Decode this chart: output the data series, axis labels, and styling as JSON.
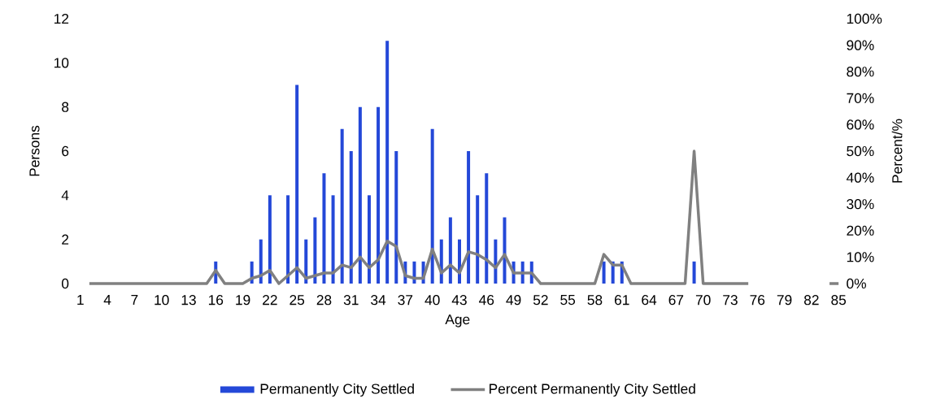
{
  "chart_data": {
    "type": "bar",
    "xlabel": "Age",
    "ylabel": "Persons",
    "y2label": "Percent/%",
    "categories": [
      "1",
      null,
      null,
      "4",
      null,
      null,
      "7",
      null,
      null,
      "10",
      null,
      null,
      "13",
      null,
      null,
      "16",
      null,
      null,
      "19",
      null,
      null,
      "22",
      null,
      null,
      "25",
      null,
      null,
      "28",
      null,
      null,
      "31",
      null,
      null,
      "34",
      null,
      null,
      "37",
      null,
      null,
      "40",
      null,
      null,
      "43",
      null,
      null,
      "46",
      null,
      null,
      "49",
      null,
      null,
      "52",
      null,
      null,
      "55",
      null,
      null,
      "58",
      null,
      null,
      "61",
      null,
      null,
      "64",
      null,
      null,
      "67",
      null,
      null,
      "70",
      null,
      null,
      "73",
      null,
      null,
      "76",
      null,
      null,
      "79",
      null,
      null,
      "82",
      null,
      null,
      "85"
    ],
    "series": [
      {
        "name": "Permanently City Settled",
        "color": "#2448d8",
        "values": [
          null,
          null,
          null,
          null,
          null,
          null,
          null,
          null,
          null,
          null,
          null,
          null,
          null,
          null,
          null,
          1,
          null,
          null,
          null,
          1,
          2,
          4,
          null,
          4,
          9,
          2,
          3,
          5,
          4,
          7,
          6,
          8,
          4,
          8,
          11,
          6,
          1,
          1,
          1,
          7,
          2,
          3,
          2,
          6,
          4,
          5,
          2,
          3,
          1,
          1,
          1,
          null,
          null,
          null,
          null,
          null,
          null,
          null,
          1,
          1,
          1,
          null,
          null,
          null,
          null,
          null,
          null,
          null,
          1,
          null,
          null,
          null,
          null,
          null,
          null,
          null,
          null,
          null,
          null,
          null,
          null,
          null,
          null,
          null,
          null
        ]
      },
      {
        "name": "Percent Permanently City Settled",
        "type": "line",
        "axis": "y2",
        "color": "#808080",
        "values": [
          null,
          0,
          0,
          0,
          0,
          0,
          0,
          0,
          0,
          0,
          0,
          0,
          0,
          0,
          0,
          5,
          0,
          0,
          0,
          2,
          3,
          5,
          0,
          3,
          6,
          2,
          3,
          4,
          4,
          7,
          6,
          10,
          6,
          9,
          16,
          14,
          3,
          2,
          2,
          13,
          4,
          7,
          4,
          12,
          11,
          9,
          6,
          11,
          4,
          4,
          4,
          0,
          0,
          0,
          0,
          0,
          0,
          0,
          11,
          7,
          7,
          0,
          0,
          0,
          0,
          0,
          0,
          0,
          50,
          0,
          0,
          0,
          0,
          0,
          0,
          null,
          null,
          null,
          null,
          null,
          null,
          null,
          null,
          0,
          0
        ]
      }
    ],
    "ylim": [
      0,
      12
    ],
    "yticks": [
      0,
      2,
      4,
      6,
      8,
      10,
      12
    ],
    "y2lim": [
      0,
      100
    ],
    "y2ticks": [
      {
        "value": 0,
        "label": "0%"
      },
      {
        "value": 10,
        "label": "10%"
      },
      {
        "value": 20,
        "label": "20%"
      },
      {
        "value": 30,
        "label": "30%"
      },
      {
        "value": 40,
        "label": "40%"
      },
      {
        "value": 50,
        "label": "50%"
      },
      {
        "value": 60,
        "label": "60%"
      },
      {
        "value": 70,
        "label": "70%"
      },
      {
        "value": 80,
        "label": "80%"
      },
      {
        "value": 90,
        "label": "90%"
      },
      {
        "value": 100,
        "label": "100%"
      }
    ],
    "legend": "bottom"
  }
}
